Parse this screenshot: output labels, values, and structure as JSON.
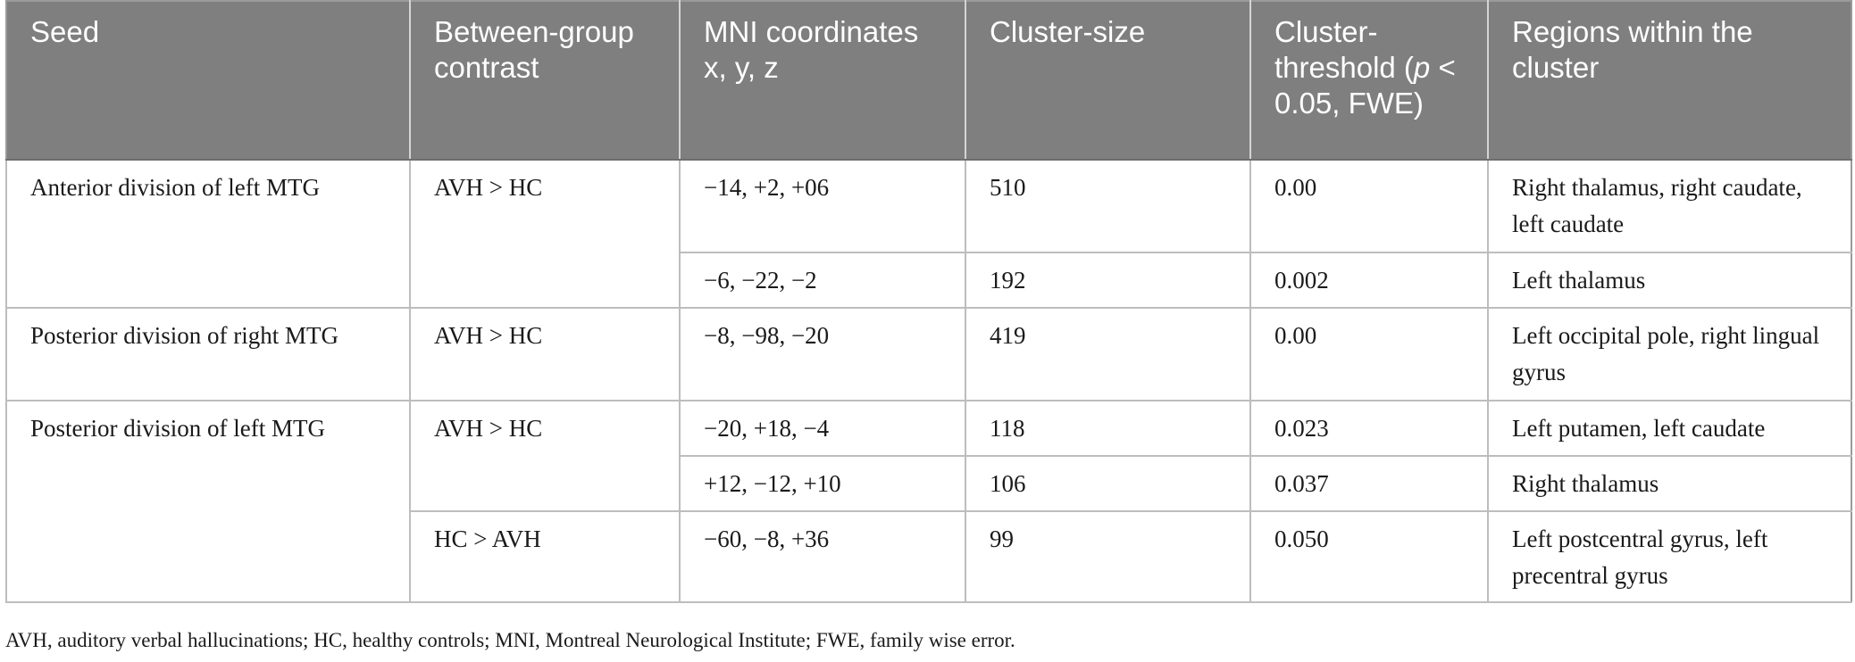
{
  "headers": {
    "seed": "Seed",
    "contrast": "Between-group contrast",
    "mni": "MNI coordinates x, y, z",
    "cluster_size": "Cluster-size",
    "threshold_pre": "Cluster-threshold (",
    "threshold_p": "p",
    "threshold_post": " < 0.05, FWE)",
    "regions": "Regions within the cluster"
  },
  "rows": [
    {
      "seed": "Anterior division of left MTG",
      "contrast": "AVH > HC",
      "mni": "−14, +2, +06",
      "size": "510",
      "threshold": "0.00",
      "regions": "Right thalamus, right caudate, left caudate"
    },
    {
      "mni": "−6, −22, −2",
      "size": "192",
      "threshold": "0.002",
      "regions": "Left thalamus"
    },
    {
      "seed": "Posterior division of right MTG",
      "contrast": "AVH > HC",
      "mni": "−8, −98, −20",
      "size": "419",
      "threshold": "0.00",
      "regions": "Left occipital pole, right lingual gyrus"
    },
    {
      "seed": "Posterior division of left MTG",
      "contrast": "AVH > HC",
      "mni": "−20, +18, −4",
      "size": "118",
      "threshold": "0.023",
      "regions": "Left putamen, left caudate"
    },
    {
      "mni": "+12, −12, +10",
      "size": "106",
      "threshold": "0.037",
      "regions": "Right thalamus"
    },
    {
      "contrast": "HC > AVH",
      "mni": "−60, −8, +36",
      "size": "99",
      "threshold": "0.050",
      "regions": "Left postcentral gyrus, left precentral gyrus"
    }
  ],
  "footnote": "AVH, auditory verbal hallucinations; HC, healthy controls; MNI, Montreal Neurological Institute; FWE, family wise error."
}
